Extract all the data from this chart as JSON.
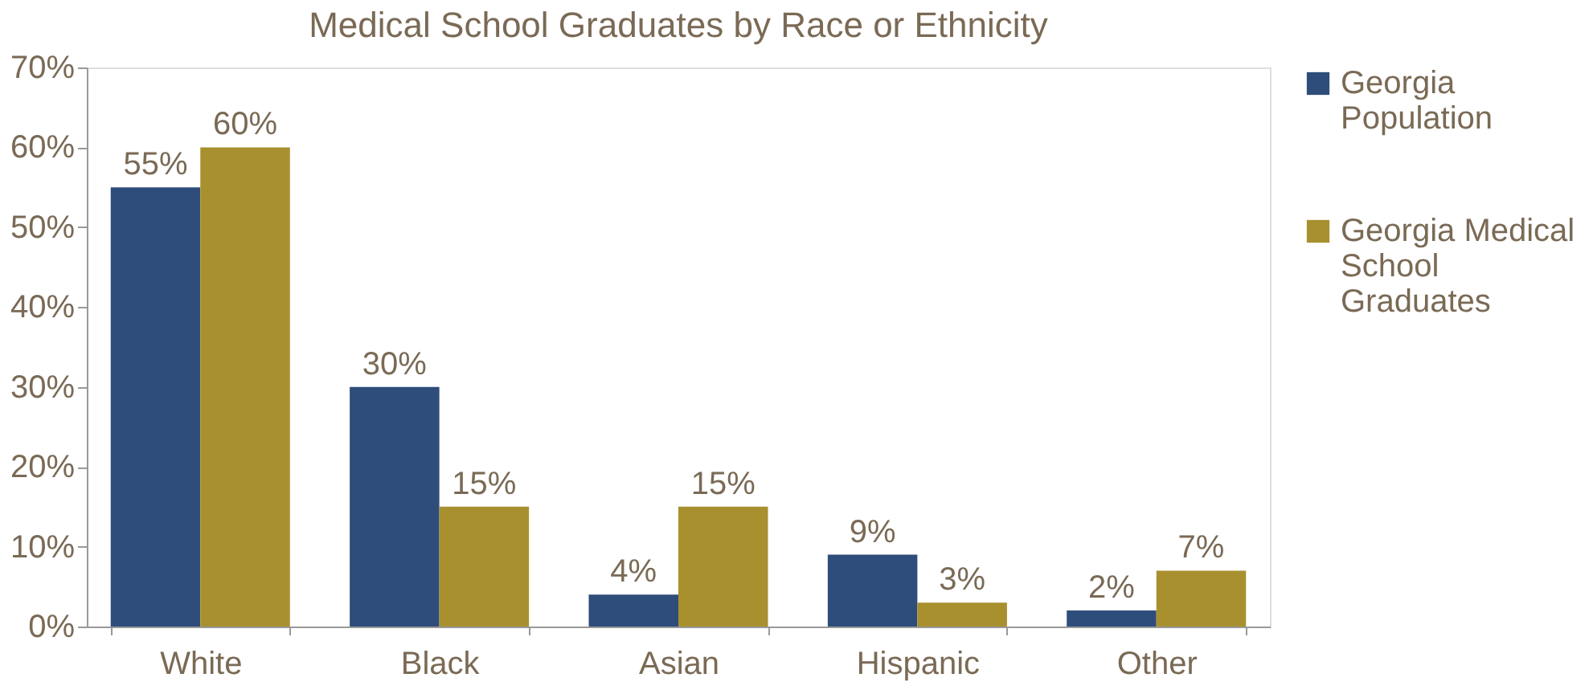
{
  "chart_data": {
    "type": "bar",
    "title": "Medical School Graduates by Race or Ethnicity",
    "categories": [
      "White",
      "Black",
      "Asian",
      "Hispanic",
      "Other"
    ],
    "series": [
      {
        "name": "Georgia Population",
        "color": "#2e4d7b",
        "values": [
          55,
          30,
          4,
          9,
          2
        ],
        "value_labels": [
          "55%",
          "30%",
          "4%",
          "9%",
          "2%"
        ]
      },
      {
        "name": "Georgia Medical School Graduates",
        "color": "#a8902f",
        "values": [
          60,
          15,
          15,
          3,
          7
        ],
        "value_labels": [
          "60%",
          "15%",
          "15%",
          "3%",
          "7%"
        ]
      }
    ],
    "ylim": [
      0,
      70
    ],
    "yticks": [
      {
        "value": 0,
        "label": "0%"
      },
      {
        "value": 10,
        "label": "10%"
      },
      {
        "value": 20,
        "label": "20%"
      },
      {
        "value": 30,
        "label": "30%"
      },
      {
        "value": 40,
        "label": "40%"
      },
      {
        "value": 50,
        "label": "50%"
      },
      {
        "value": 60,
        "label": "60%"
      },
      {
        "value": 70,
        "label": "70%"
      }
    ],
    "grid": false,
    "legend": "right"
  }
}
